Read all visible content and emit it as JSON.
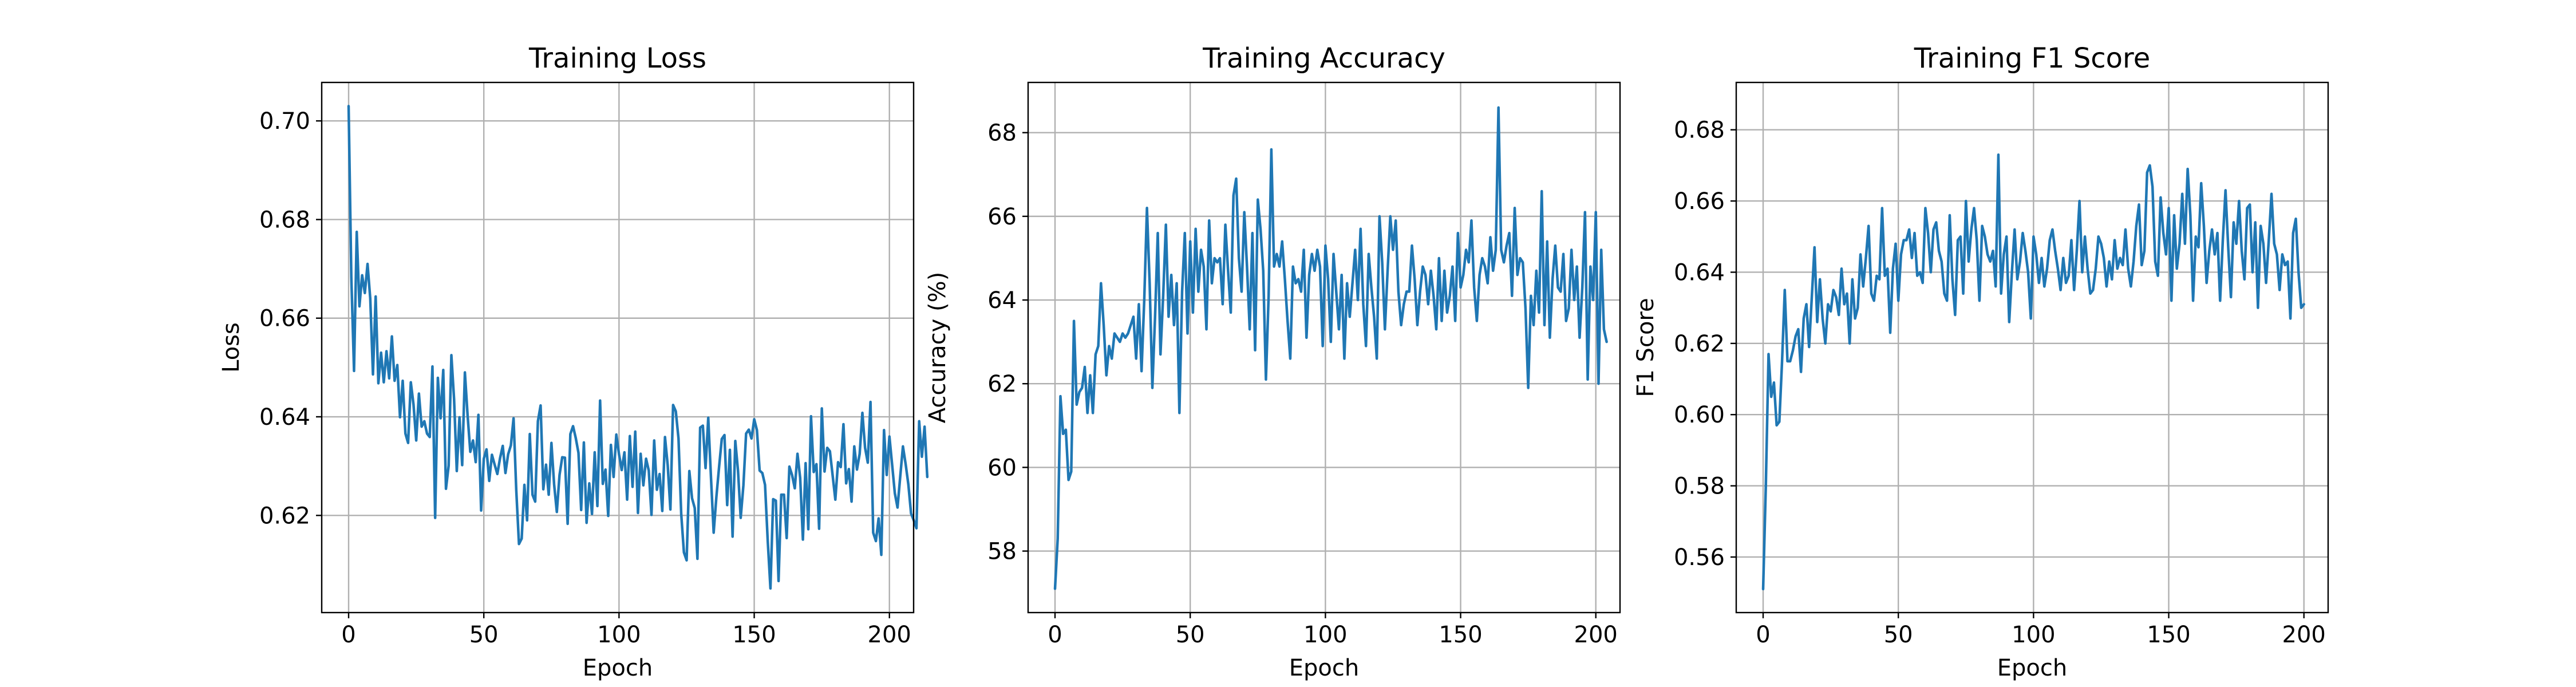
{
  "chart_data": [
    {
      "type": "line",
      "title": "Training Loss",
      "xlabel": "Epoch",
      "ylabel": "Loss",
      "xlim": [
        -9.95,
        208.95
      ],
      "ylim": [
        0.6003,
        0.7078
      ],
      "xticks": [
        0,
        50,
        100,
        150,
        200
      ],
      "yticks": [
        0.62,
        0.64,
        0.66,
        0.68,
        0.7
      ],
      "ytick_labels": [
        "0.62",
        "0.64",
        "0.66",
        "0.68",
        "0.70"
      ],
      "grid": true,
      "color": "#1f77b4",
      "x_start": 0,
      "x_step": 1,
      "values": [
        0.703,
        0.6683,
        0.6493,
        0.6775,
        0.6624,
        0.6687,
        0.6651,
        0.671,
        0.664,
        0.6486,
        0.6644,
        0.6468,
        0.653,
        0.647,
        0.6533,
        0.6478,
        0.6563,
        0.6473,
        0.6505,
        0.6399,
        0.6473,
        0.6366,
        0.6347,
        0.647,
        0.6425,
        0.6352,
        0.6447,
        0.638,
        0.6391,
        0.6366,
        0.6359,
        0.6502,
        0.6195,
        0.6479,
        0.6397,
        0.6495,
        0.6254,
        0.6301,
        0.6525,
        0.6436,
        0.629,
        0.6399,
        0.6302,
        0.649,
        0.6403,
        0.6329,
        0.6352,
        0.6308,
        0.6404,
        0.621,
        0.6315,
        0.6334,
        0.627,
        0.6323,
        0.6303,
        0.6284,
        0.6316,
        0.6341,
        0.6286,
        0.6324,
        0.6342,
        0.6397,
        0.6251,
        0.6142,
        0.6153,
        0.6262,
        0.619,
        0.6365,
        0.6242,
        0.6228,
        0.6391,
        0.6423,
        0.6253,
        0.6303,
        0.6242,
        0.6347,
        0.6263,
        0.6207,
        0.6282,
        0.6318,
        0.6317,
        0.6183,
        0.6365,
        0.6381,
        0.6357,
        0.6327,
        0.6211,
        0.6348,
        0.6185,
        0.6265,
        0.6203,
        0.6328,
        0.6219,
        0.6433,
        0.6264,
        0.6293,
        0.6199,
        0.6343,
        0.6278,
        0.6364,
        0.6324,
        0.6292,
        0.6328,
        0.6232,
        0.6361,
        0.6258,
        0.637,
        0.6205,
        0.6325,
        0.6261,
        0.6315,
        0.6291,
        0.6201,
        0.6352,
        0.6252,
        0.6284,
        0.6209,
        0.6359,
        0.6302,
        0.6212,
        0.6424,
        0.6411,
        0.6356,
        0.6203,
        0.6125,
        0.6109,
        0.629,
        0.6235,
        0.6215,
        0.6112,
        0.6378,
        0.6382,
        0.6296,
        0.6398,
        0.6278,
        0.6165,
        0.6237,
        0.6298,
        0.6355,
        0.6363,
        0.6221,
        0.6333,
        0.6157,
        0.6351,
        0.6291,
        0.6195,
        0.6261,
        0.6366,
        0.6374,
        0.6356,
        0.6395,
        0.6373,
        0.6291,
        0.6286,
        0.6262,
        0.6148,
        0.6052,
        0.6233,
        0.623,
        0.6067,
        0.6242,
        0.6242,
        0.6154,
        0.6299,
        0.6282,
        0.6255,
        0.6325,
        0.6276,
        0.6151,
        0.6306,
        0.6172,
        0.6401,
        0.6288,
        0.6304,
        0.6173,
        0.6417,
        0.6289,
        0.6337,
        0.633,
        0.6281,
        0.6232,
        0.6308,
        0.6298,
        0.6385,
        0.6265,
        0.6294,
        0.6228,
        0.634,
        0.6293,
        0.6325,
        0.6408,
        0.6337,
        0.6307,
        0.643,
        0.6165,
        0.6148,
        0.6194,
        0.612,
        0.6373,
        0.6282,
        0.636,
        0.6303,
        0.6245,
        0.6216,
        0.6279,
        0.634,
        0.6304,
        0.6263,
        0.6204,
        0.619,
        0.6174,
        0.6391,
        0.6319,
        0.638,
        0.6278
      ]
    },
    {
      "type": "line",
      "title": "Training Accuracy",
      "xlabel": "Epoch",
      "ylabel": "Accuracy (%)",
      "xlim": [
        -9.95,
        208.95
      ],
      "ylim": [
        56.53,
        69.2
      ],
      "xticks": [
        0,
        50,
        100,
        150,
        200
      ],
      "yticks": [
        58,
        60,
        62,
        64,
        66,
        68
      ],
      "ytick_labels": [
        "58",
        "60",
        "62",
        "64",
        "66",
        "68"
      ],
      "grid": true,
      "color": "#1f77b4",
      "x_start": 0,
      "x_step": 1,
      "values": [
        57.1,
        58.3,
        61.7,
        60.8,
        60.9,
        59.7,
        59.9,
        63.5,
        61.5,
        61.8,
        61.9,
        62.4,
        61.3,
        62.2,
        61.3,
        62.7,
        62.9,
        64.4,
        63.4,
        62.2,
        62.9,
        62.6,
        63.2,
        63.1,
        63.0,
        63.2,
        63.1,
        63.2,
        63.4,
        63.6,
        62.6,
        63.9,
        62.3,
        64.0,
        66.2,
        64.4,
        61.9,
        63.6,
        65.6,
        62.7,
        64.1,
        65.8,
        63.6,
        64.6,
        63.4,
        64.4,
        61.3,
        64.2,
        65.6,
        63.2,
        65.4,
        63.7,
        65.7,
        64.2,
        65.2,
        64.8,
        63.3,
        65.9,
        64.4,
        65.0,
        64.9,
        65.0,
        63.9,
        65.8,
        64.7,
        63.7,
        66.5,
        66.9,
        65.0,
        64.2,
        66.1,
        64.8,
        63.3,
        65.6,
        62.8,
        66.4,
        65.7,
        64.7,
        62.1,
        64.1,
        67.6,
        64.8,
        65.1,
        64.8,
        65.4,
        64.5,
        63.5,
        62.6,
        64.8,
        64.4,
        64.5,
        64.2,
        65.2,
        63.1,
        64.6,
        65.1,
        64.7,
        65.2,
        64.8,
        62.9,
        65.3,
        64.5,
        63.0,
        65.1,
        64.2,
        63.3,
        64.6,
        62.6,
        64.4,
        63.6,
        64.4,
        65.2,
        64.0,
        65.7,
        63.9,
        62.9,
        65.1,
        64.3,
        63.6,
        62.6,
        66.0,
        64.9,
        63.3,
        64.7,
        66.0,
        65.2,
        65.9,
        64.2,
        63.4,
        63.9,
        64.2,
        64.2,
        65.3,
        64.5,
        63.4,
        64.2,
        64.8,
        64.6,
        63.9,
        64.7,
        64.1,
        63.3,
        65.0,
        63.5,
        64.7,
        63.7,
        64.1,
        64.8,
        63.5,
        65.6,
        64.3,
        64.6,
        65.2,
        64.9,
        65.9,
        64.3,
        63.5,
        64.6,
        65.0,
        64.8,
        64.4,
        65.5,
        64.7,
        65.2,
        68.6,
        65.2,
        64.9,
        65.3,
        65.6,
        64.1,
        66.2,
        64.6,
        65.0,
        64.9,
        63.8,
        61.9,
        64.1,
        63.4,
        64.7,
        63.7,
        66.6,
        63.4,
        65.4,
        63.1,
        64.5,
        65.3,
        64.3,
        64.2,
        65.1,
        63.5,
        63.8,
        65.2,
        64.0,
        64.8,
        63.1,
        64.3,
        66.1,
        62.1,
        64.8,
        64.0,
        66.1,
        62.0,
        65.2,
        63.3,
        63.0
      ]
    },
    {
      "type": "line",
      "title": "Training F1 Score",
      "xlabel": "Epoch",
      "ylabel": "F1 Score",
      "xlim": [
        -9.95,
        208.95
      ],
      "ylim": [
        0.5444,
        0.6933
      ],
      "xticks": [
        0,
        50,
        100,
        150,
        200
      ],
      "yticks": [
        0.56,
        0.58,
        0.6,
        0.62,
        0.64,
        0.66,
        0.68
      ],
      "ytick_labels": [
        "0.56",
        "0.58",
        "0.60",
        "0.62",
        "0.64",
        "0.66",
        "0.68"
      ],
      "grid": true,
      "color": "#1f77b4",
      "x_start": 0,
      "x_step": 1,
      "values": [
        0.551,
        0.58,
        0.617,
        0.605,
        0.609,
        0.597,
        0.598,
        0.615,
        0.635,
        0.615,
        0.615,
        0.618,
        0.622,
        0.624,
        0.612,
        0.627,
        0.631,
        0.619,
        0.633,
        0.647,
        0.626,
        0.638,
        0.627,
        0.62,
        0.631,
        0.629,
        0.635,
        0.633,
        0.628,
        0.641,
        0.631,
        0.634,
        0.62,
        0.638,
        0.627,
        0.63,
        0.645,
        0.636,
        0.644,
        0.653,
        0.634,
        0.632,
        0.639,
        0.638,
        0.658,
        0.639,
        0.641,
        0.623,
        0.641,
        0.648,
        0.632,
        0.645,
        0.649,
        0.649,
        0.652,
        0.644,
        0.651,
        0.639,
        0.64,
        0.637,
        0.658,
        0.651,
        0.64,
        0.652,
        0.654,
        0.646,
        0.643,
        0.634,
        0.632,
        0.656,
        0.638,
        0.628,
        0.649,
        0.65,
        0.634,
        0.66,
        0.643,
        0.652,
        0.658,
        0.649,
        0.632,
        0.653,
        0.65,
        0.645,
        0.643,
        0.646,
        0.636,
        0.673,
        0.634,
        0.645,
        0.65,
        0.626,
        0.64,
        0.652,
        0.638,
        0.643,
        0.651,
        0.646,
        0.64,
        0.627,
        0.65,
        0.645,
        0.637,
        0.644,
        0.636,
        0.641,
        0.649,
        0.652,
        0.646,
        0.641,
        0.635,
        0.644,
        0.637,
        0.639,
        0.649,
        0.635,
        0.646,
        0.66,
        0.64,
        0.65,
        0.641,
        0.634,
        0.635,
        0.641,
        0.65,
        0.648,
        0.644,
        0.636,
        0.643,
        0.638,
        0.649,
        0.641,
        0.644,
        0.642,
        0.652,
        0.641,
        0.636,
        0.643,
        0.653,
        0.659,
        0.642,
        0.646,
        0.668,
        0.67,
        0.664,
        0.643,
        0.639,
        0.661,
        0.651,
        0.645,
        0.658,
        0.632,
        0.656,
        0.641,
        0.648,
        0.662,
        0.648,
        0.669,
        0.656,
        0.632,
        0.65,
        0.647,
        0.665,
        0.653,
        0.637,
        0.646,
        0.652,
        0.645,
        0.651,
        0.632,
        0.649,
        0.663,
        0.647,
        0.633,
        0.654,
        0.648,
        0.66,
        0.646,
        0.638,
        0.658,
        0.659,
        0.64,
        0.654,
        0.63,
        0.653,
        0.648,
        0.637,
        0.649,
        0.662,
        0.648,
        0.645,
        0.635,
        0.645,
        0.642,
        0.643,
        0.627,
        0.651,
        0.655,
        0.64,
        0.63,
        0.631
      ]
    }
  ]
}
